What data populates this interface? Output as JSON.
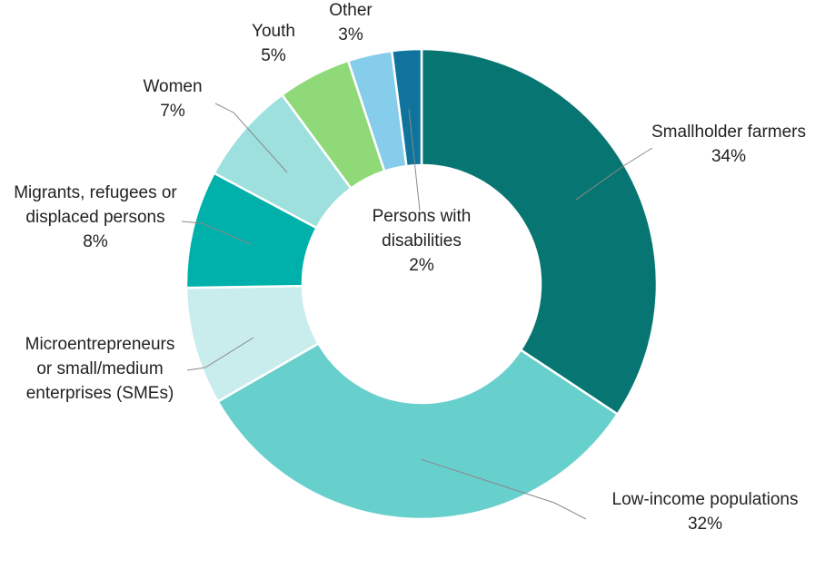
{
  "chart_data": {
    "type": "pie",
    "donut": true,
    "title": "",
    "legend": "none",
    "slices": [
      {
        "label": [
          "Smallholder farmers"
        ],
        "value": 34,
        "value_label": "34%",
        "color": "#077572"
      },
      {
        "label": [
          "Low-income populations"
        ],
        "value": 32,
        "value_label": "32%",
        "color": "#67cfcc"
      },
      {
        "label": [
          "Microentrepreneurs",
          "or small/medium",
          "enterprises (SMEs)"
        ],
        "value": 8,
        "value_label": "",
        "color": "#c9ecec"
      },
      {
        "label": [
          "Migrants, refugees or",
          "displaced persons"
        ],
        "value": 8,
        "value_label": "8%",
        "color": "#00b0aa"
      },
      {
        "label": [
          "Women"
        ],
        "value": 7,
        "value_label": "7%",
        "color": "#9de0de"
      },
      {
        "label": [
          "Youth"
        ],
        "value": 5,
        "value_label": "5%",
        "color": "#8fd978"
      },
      {
        "label": [
          "Other"
        ],
        "value": 3,
        "value_label": "3%",
        "color": "#86cceb"
      },
      {
        "label": [
          "Persons with",
          "disabilities"
        ],
        "value": 2,
        "value_label": "2%",
        "color": "#0f739c"
      }
    ]
  }
}
